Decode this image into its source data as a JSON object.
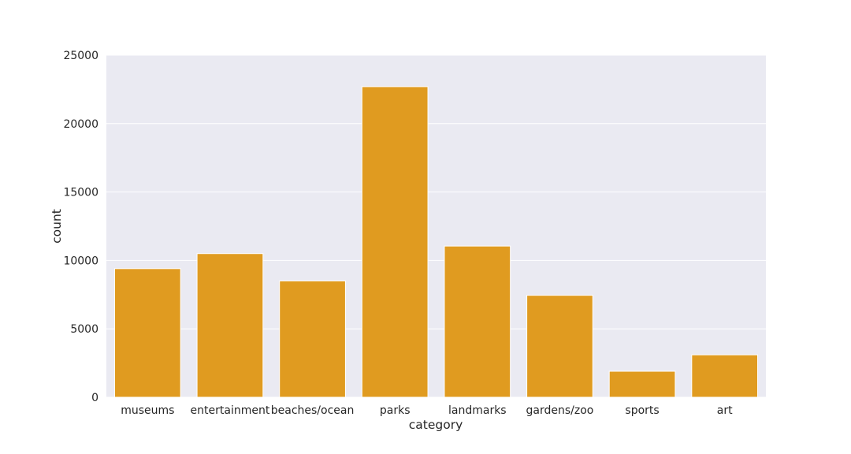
{
  "chart_data": {
    "type": "bar",
    "categories": [
      "museums",
      "entertainment",
      "beaches/ocean",
      "parks",
      "landmarks",
      "gardens/zoo",
      "sports",
      "art"
    ],
    "values": [
      9400,
      10500,
      8500,
      22700,
      11050,
      7450,
      1900,
      3100
    ],
    "xlabel": "category",
    "ylabel": "count",
    "ylim": [
      0,
      25000
    ],
    "yticks": [
      0,
      5000,
      10000,
      15000,
      20000,
      25000
    ],
    "bar_color": "#e09b20",
    "background_color": "#eaeaf2",
    "grid": true
  }
}
